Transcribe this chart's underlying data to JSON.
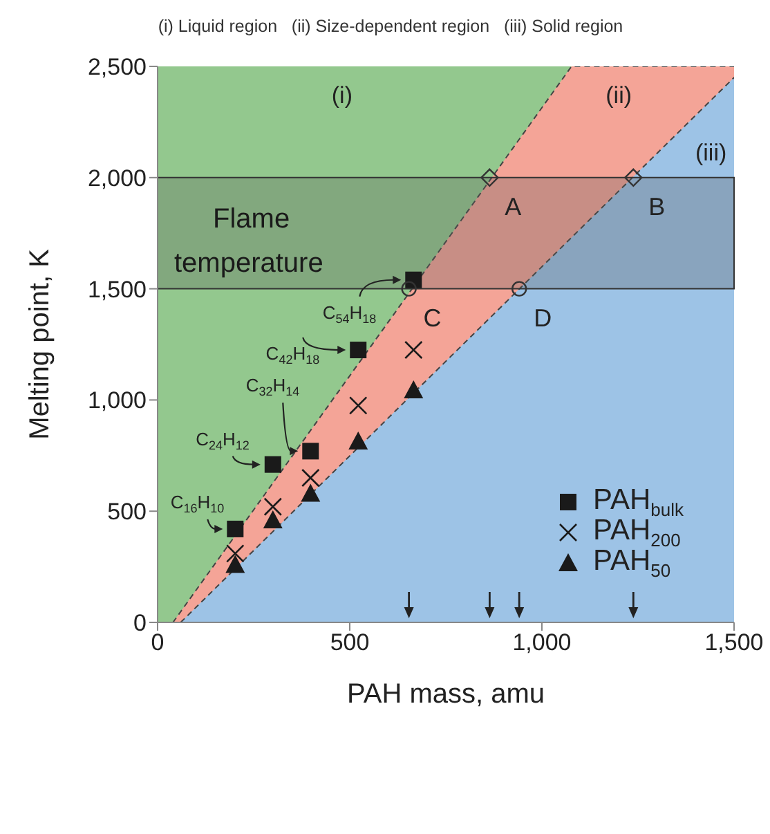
{
  "chart_data": {
    "type": "scatter",
    "title": "(i) Liquid region   (ii) Size-dependent region   (iii) Solid region",
    "xlabel": "PAH mass, amu",
    "ylabel": "Melting point, K",
    "xlim": [
      0,
      1500
    ],
    "xticks": [
      0,
      500,
      {
        "value": 1000,
        "label": "1,000"
      },
      {
        "value": 1500,
        "label": "1,500"
      }
    ],
    "ylim": [
      0,
      2500
    ],
    "yticks": [
      0,
      500,
      {
        "value": 1000,
        "label": "1,000"
      },
      {
        "value": 1500,
        "label": "1,500"
      },
      {
        "value": 2000,
        "label": "2,000"
      },
      {
        "value": 2500,
        "label": "2,500"
      }
    ],
    "grid": false,
    "legend": "bottom right",
    "series": [
      {
        "type": "area",
        "name": "(i)",
        "color": "#93c88e",
        "x": [
          0,
          1500
        ],
        "values": [
          2500,
          2500
        ]
      },
      {
        "type": "area",
        "name": "(ii)",
        "color": "#f4a497",
        "x": [
          40,
          1077,
          1500
        ],
        "values": [
          0,
          2500,
          2500
        ],
        "line_style": "dashed"
      },
      {
        "type": "area",
        "name": "(iii)",
        "color": "#9dc3e6",
        "x": [
          60,
          1500
        ],
        "values": [
          0,
          2450
        ],
        "line_style": "dashed"
      },
      {
        "name": "PAH$_{bulk}$",
        "color": "#1a1a1a",
        "marker": "square",
        "x": [
          202,
          300,
          398,
          522,
          666
        ],
        "values": [
          420,
          710,
          770,
          1225,
          1540
        ]
      },
      {
        "name": "PAH$_{200}$",
        "color": "#1a1a1a",
        "marker": "cross",
        "x": [
          202,
          300,
          398,
          522,
          666
        ],
        "values": [
          310,
          520,
          650,
          975,
          1225
        ]
      },
      {
        "name": "PAH$_{50}$",
        "color": "#1a1a1a",
        "marker": "triangle",
        "x": [
          202,
          300,
          398,
          522,
          666
        ],
        "values": [
          260,
          460,
          580,
          815,
          1045
        ]
      },
      {
        "color": "#333333",
        "marker": "diamond",
        "x": [
          864,
          1238
        ],
        "values": [
          2000,
          2000
        ]
      },
      {
        "color": "#333333",
        "marker": "circle",
        "x": [
          654,
          941
        ],
        "values": [
          1500,
          1500
        ]
      }
    ],
    "bands": [
      {
        "axis": "y",
        "from": 1500,
        "to": 2000,
        "label": "Flame temperature",
        "color": "#555555"
      }
    ],
    "annotations": [
      {
        "text": "A",
        "x": 864,
        "y": 2000
      },
      {
        "text": "B",
        "x": 1238,
        "y": 2000
      },
      {
        "text": "C",
        "x": 654,
        "y": 1500
      },
      {
        "text": "D",
        "x": 941,
        "y": 1500
      },
      {
        "text": "C$_{16}$H$_{10}$",
        "x": 202,
        "y": 420
      },
      {
        "text": "C$_{24}$H$_{12}$",
        "x": 300,
        "y": 710
      },
      {
        "text": "C$_{32}$H$_{14}$",
        "x": 398,
        "y": 770
      },
      {
        "text": "C$_{42}$H$_{18}$",
        "x": 522,
        "y": 1225
      },
      {
        "text": "C$_{54}$H$_{18}$",
        "x": 666,
        "y": 1540
      }
    ]
  }
}
